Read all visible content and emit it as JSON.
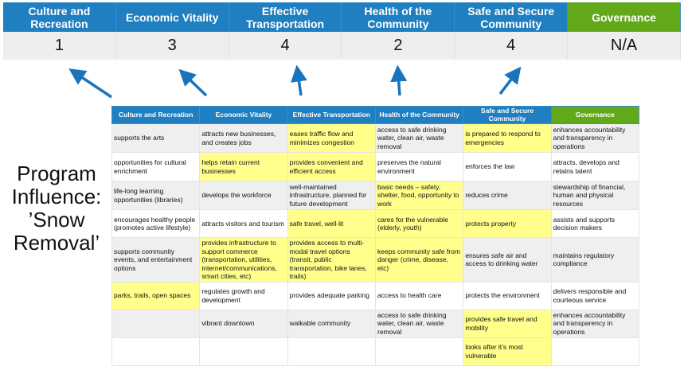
{
  "summary": {
    "headers": [
      "Culture and Recreation",
      "Economic Vitality",
      "Effective Transportation",
      "Health of the Community",
      "Safe and Secure Community",
      "Governance"
    ],
    "scores": [
      "1",
      "3",
      "4",
      "2",
      "4",
      "N/A"
    ]
  },
  "program_label": "Program Influence: ’Snow Removal’",
  "colors": {
    "header_blue": "#1f7fc0",
    "governance_green": "#62a91a",
    "highlight": "#ffff8c",
    "arrow": "#1a73bd"
  },
  "table": {
    "headers": [
      "Culture and Recreation",
      "Economic Vitality",
      "Effective Transportation",
      "Health of the Community",
      "Safe and Secure Community",
      "Governance"
    ],
    "rows": [
      {
        "cells": [
          "supports the arts",
          "attracts new businesses, and creates jobs",
          "eases traffic flow and minimizes congestion",
          "access to safe drinking water, clean air, waste removal",
          "is prepared to respond to emergencies",
          "enhances accountability and transparency in operations"
        ],
        "highlighted": [
          false,
          false,
          true,
          false,
          true,
          false
        ]
      },
      {
        "cells": [
          "opportunities for cultural enrichment",
          "helps retain current businesses",
          "provides convenient and efficient access",
          "preserves the natural environment",
          "enforces the law",
          "attracts, develops and retains talent"
        ],
        "highlighted": [
          false,
          true,
          true,
          false,
          false,
          false
        ]
      },
      {
        "cells": [
          "life-long learning opportunities (libraries)",
          "develops the workforce",
          "well-maintained infrastructure, planned for future development",
          "basic needs – safety, shelter, food, opportunity to work",
          "reduces crime",
          "stewardship of financial, human and physical resources"
        ],
        "highlighted": [
          false,
          false,
          false,
          true,
          false,
          false
        ]
      },
      {
        "cells": [
          "encourages healthy people (promotes active lifestyle)",
          "attracts visitors and tourism",
          "safe travel, well-lit",
          "cares for the vulnerable (elderly, youth)",
          "protects property",
          "assists and supports decision makers"
        ],
        "highlighted": [
          false,
          false,
          true,
          true,
          true,
          false
        ]
      },
      {
        "cells": [
          "supports community events, and entertainment options",
          "provides infrastructure to support commerce (transportation, utilities, internet/communications, smart cities, etc)",
          "provides access to multi-modal travel options (transit, public transportation, bike lanes, trails)",
          "keeps community safe from danger (crime, disease, etc)",
          "ensures safe air and access to drinking water",
          "maintains regulatory compliance"
        ],
        "highlighted": [
          false,
          true,
          true,
          true,
          false,
          false
        ]
      },
      {
        "cells": [
          "parks, trails, open spaces",
          "regulates growth and development",
          "provides adequate parking",
          "access to health care",
          "protects the environment",
          "delivers responsible and courteous service"
        ],
        "highlighted": [
          true,
          false,
          false,
          false,
          false,
          false
        ]
      },
      {
        "cells": [
          "",
          "vibrant downtown",
          "walkable community",
          "access to safe drinking water, clean air, waste removal",
          "provides safe travel and mobility",
          "enhances accountability and transparency in operations"
        ],
        "highlighted": [
          false,
          false,
          false,
          false,
          true,
          false
        ]
      },
      {
        "cells": [
          "",
          "",
          "",
          "",
          "looks after it’s most vulnerable",
          ""
        ],
        "highlighted": [
          false,
          false,
          false,
          false,
          true,
          false
        ]
      }
    ]
  }
}
